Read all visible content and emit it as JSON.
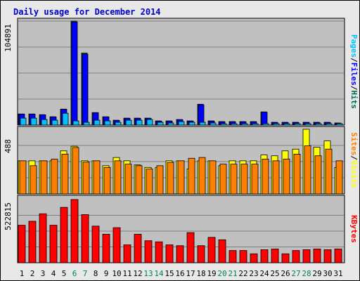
{
  "title": "Daily usage for December 2014",
  "colors": {
    "background": "#e8e8e8",
    "plot": "#c0c0c0",
    "grid": "#808080",
    "title": "#0000cc",
    "hits": "#006c54",
    "files": "#0000ff",
    "pages": "#00c0ff",
    "visits": "#ffff00",
    "sites": "#ff8000",
    "kbytes": "#ff0000",
    "weekend": "#00805c",
    "day": "#000000"
  },
  "chart_data": [
    {
      "type": "bar",
      "panel": "hits-files-pages",
      "ylabel": [
        "Hits",
        "Files",
        "Pages"
      ],
      "ymax_label": "104891",
      "ylim": [
        0,
        104891
      ],
      "categories": [
        "1",
        "2",
        "3",
        "4",
        "5",
        "6",
        "7",
        "8",
        "9",
        "10",
        "11",
        "12",
        "13",
        "14",
        "15",
        "16",
        "17",
        "18",
        "19",
        "20",
        "21",
        "22",
        "23",
        "24",
        "25",
        "26",
        "27",
        "28",
        "29",
        "30",
        "31"
      ],
      "series": [
        {
          "name": "Hits",
          "color": "#006c54",
          "values": [
            11200,
            11200,
            10500,
            8400,
            16100,
            104891,
            72700,
            12600,
            8400,
            4900,
            7000,
            7000,
            7000,
            4200,
            4200,
            5600,
            4200,
            21000,
            4200,
            3500,
            3500,
            3500,
            3500,
            13300,
            2800,
            2800,
            2800,
            2800,
            2800,
            2800,
            2100
          ]
        },
        {
          "name": "Files",
          "color": "#0000ff",
          "values": [
            11000,
            11000,
            10300,
            8200,
            15900,
            104000,
            71500,
            12400,
            8200,
            4700,
            6800,
            6800,
            6800,
            4000,
            4000,
            5400,
            4000,
            20500,
            4000,
            3300,
            3300,
            3300,
            3300,
            13000,
            2600,
            2600,
            2600,
            2600,
            2600,
            2600,
            1900
          ]
        },
        {
          "name": "Pages",
          "color": "#00c0ff",
          "values": [
            7000,
            7000,
            5600,
            4900,
            11900,
            4200,
            2800,
            4900,
            4200,
            2800,
            4900,
            4900,
            5600,
            2800,
            2100,
            3500,
            2800,
            2800,
            2100,
            1400,
            1400,
            1400,
            1400,
            1400,
            1400,
            1400,
            1400,
            1400,
            1400,
            1400,
            1400
          ]
        }
      ],
      "weekend_days": [
        6,
        7,
        13,
        14,
        20,
        21,
        27,
        28
      ]
    },
    {
      "type": "bar",
      "panel": "visits-sites",
      "ylabel": [
        "Visits",
        "Sites"
      ],
      "ymax_label": "488",
      "ylim": [
        0,
        488
      ],
      "categories": [
        "1",
        "2",
        "3",
        "4",
        "5",
        "6",
        "7",
        "8",
        "9",
        "10",
        "11",
        "12",
        "13",
        "14",
        "15",
        "16",
        "17",
        "18",
        "19",
        "20",
        "21",
        "22",
        "23",
        "24",
        "25",
        "26",
        "27",
        "28",
        "29",
        "30",
        "31"
      ],
      "series": [
        {
          "name": "Visits",
          "color": "#ffff00",
          "values": [
            250,
            250,
            250,
            250,
            325,
            360,
            250,
            250,
            213,
            275,
            250,
            219,
            200,
            200,
            250,
            250,
            188,
            250,
            250,
            213,
            250,
            250,
            250,
            294,
            288,
            325,
            338,
            488,
            353,
            400,
            200
          ]
        },
        {
          "name": "Sites",
          "color": "#ff8000",
          "values": [
            250,
            213,
            250,
            263,
            300,
            350,
            240,
            250,
            200,
            250,
            225,
            213,
            188,
            213,
            238,
            250,
            269,
            275,
            250,
            225,
            225,
            225,
            225,
            263,
            250,
            263,
            300,
            363,
            288,
            338,
            250
          ]
        }
      ]
    },
    {
      "type": "bar",
      "panel": "kbytes",
      "ylabel": [
        "KBytes"
      ],
      "ymax_label": "522815",
      "ylim": [
        0,
        522815
      ],
      "categories": [
        "1",
        "2",
        "3",
        "4",
        "5",
        "6",
        "7",
        "8",
        "9",
        "10",
        "11",
        "12",
        "13",
        "14",
        "15",
        "16",
        "17",
        "18",
        "19",
        "20",
        "21",
        "22",
        "23",
        "24",
        "25",
        "26",
        "27",
        "28",
        "29",
        "30",
        "31"
      ],
      "series": [
        {
          "name": "KBytes",
          "color": "#ff0000",
          "values": [
            310000,
            343000,
            405000,
            310000,
            458000,
            522815,
            398000,
            303000,
            236000,
            290000,
            148000,
            236000,
            182000,
            173000,
            148000,
            141000,
            249000,
            141000,
            210000,
            190000,
            101000,
            101000,
            74000,
            108000,
            114000,
            74000,
            101000,
            108000,
            114000,
            108000,
            114000
          ]
        }
      ]
    }
  ]
}
